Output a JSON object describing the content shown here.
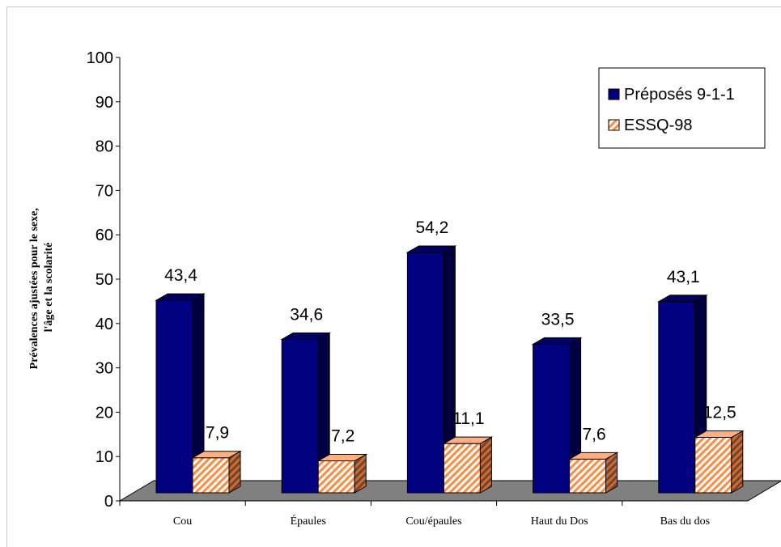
{
  "chart_data": {
    "type": "bar",
    "categories": [
      "Cou",
      "Épaules",
      "Cou/épaules",
      "Haut du Dos",
      "Bas du dos"
    ],
    "series": [
      {
        "name": "Préposés 9-1-1",
        "values": [
          43.4,
          34.6,
          54.2,
          33.5,
          43.1
        ],
        "labels": [
          "43,4",
          "34,6",
          "54,2",
          "33,5",
          "43,1"
        ],
        "color": "#000080"
      },
      {
        "name": "ESSQ-98",
        "values": [
          7.9,
          7.2,
          11.1,
          7.6,
          12.5
        ],
        "labels": [
          "7,9",
          "7,2",
          "11,1",
          "7,6",
          "12,5"
        ],
        "color": "#ffb080",
        "pattern": "diagonal-hatch"
      }
    ],
    "ylabel_line1": "Prévalences ajustées pour le sexe,",
    "ylabel_line2": "l'âge et la scolarité",
    "xlabel": "",
    "ylim": [
      0,
      100
    ],
    "yticks": [
      "0",
      "10",
      "20",
      "30",
      "40",
      "50",
      "60",
      "70",
      "80",
      "90",
      "100"
    ],
    "legend_position": "top-right",
    "grid": false,
    "floor_color": "#808080"
  }
}
